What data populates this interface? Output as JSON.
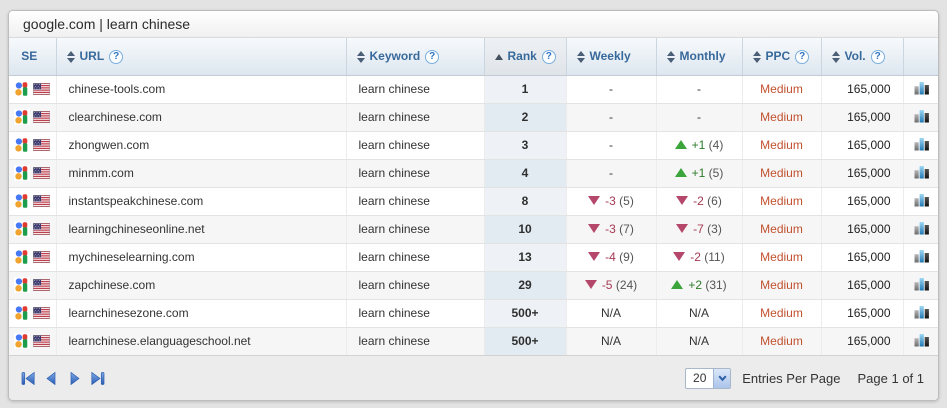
{
  "titlebar": {
    "title": "google.com | learn chinese"
  },
  "table": {
    "headers": [
      {
        "label": "SE"
      },
      {
        "label": "URL",
        "sortable": true,
        "help": true
      },
      {
        "label": "Keyword",
        "sortable": true,
        "help": true
      },
      {
        "label": "Rank",
        "sortable": true,
        "sorted": "asc",
        "help": true
      },
      {
        "label": "Weekly",
        "sortable": true
      },
      {
        "label": "Monthly",
        "sortable": true
      },
      {
        "label": "PPC",
        "sortable": true,
        "help": true
      },
      {
        "label": "Vol.",
        "sortable": true,
        "help": true
      },
      {
        "label": ""
      }
    ],
    "rows": [
      {
        "se": "google-us",
        "url": "chinese-tools.com",
        "keyword": "learn chinese",
        "rank": "1",
        "weekly": {
          "text": "-"
        },
        "monthly": {
          "text": "-"
        },
        "ppc": "Medium",
        "vol": "165,000"
      },
      {
        "se": "google-us",
        "url": "clearchinese.com",
        "keyword": "learn chinese",
        "rank": "2",
        "weekly": {
          "text": "-"
        },
        "monthly": {
          "text": "-"
        },
        "ppc": "Medium",
        "vol": "165,000"
      },
      {
        "se": "google-us",
        "url": "zhongwen.com",
        "keyword": "learn chinese",
        "rank": "3",
        "weekly": {
          "text": "-"
        },
        "monthly": {
          "dir": "up",
          "change": "+1",
          "prev": "(4)"
        },
        "ppc": "Medium",
        "vol": "165,000"
      },
      {
        "se": "google-us",
        "url": "minmm.com",
        "keyword": "learn chinese",
        "rank": "4",
        "weekly": {
          "text": "-"
        },
        "monthly": {
          "dir": "up",
          "change": "+1",
          "prev": "(5)"
        },
        "ppc": "Medium",
        "vol": "165,000"
      },
      {
        "se": "google-us",
        "url": "instantspeakchinese.com",
        "keyword": "learn chinese",
        "rank": "8",
        "weekly": {
          "dir": "down",
          "change": "-3",
          "prev": "(5)"
        },
        "monthly": {
          "dir": "down",
          "change": "-2",
          "prev": "(6)"
        },
        "ppc": "Medium",
        "vol": "165,000"
      },
      {
        "se": "google-us",
        "url": "learningchineseonline.net",
        "keyword": "learn chinese",
        "rank": "10",
        "weekly": {
          "dir": "down",
          "change": "-3",
          "prev": "(7)"
        },
        "monthly": {
          "dir": "down",
          "change": "-7",
          "prev": "(3)"
        },
        "ppc": "Medium",
        "vol": "165,000"
      },
      {
        "se": "google-us",
        "url": "mychineselearning.com",
        "keyword": "learn chinese",
        "rank": "13",
        "weekly": {
          "dir": "down",
          "change": "-4",
          "prev": "(9)"
        },
        "monthly": {
          "dir": "down",
          "change": "-2",
          "prev": "(11)"
        },
        "ppc": "Medium",
        "vol": "165,000"
      },
      {
        "se": "google-us",
        "url": "zapchinese.com",
        "keyword": "learn chinese",
        "rank": "29",
        "weekly": {
          "dir": "down",
          "change": "-5",
          "prev": "(24)"
        },
        "monthly": {
          "dir": "up",
          "change": "+2",
          "prev": "(31)"
        },
        "ppc": "Medium",
        "vol": "165,000"
      },
      {
        "se": "google-us",
        "url": "learnchinesezone.com",
        "keyword": "learn chinese",
        "rank": "500+",
        "weekly": {
          "text": "N/A"
        },
        "monthly": {
          "text": "N/A"
        },
        "ppc": "Medium",
        "vol": "165,000"
      },
      {
        "se": "google-us",
        "url": "learnchinese.elanguageschool.net",
        "keyword": "learn chinese",
        "rank": "500+",
        "weekly": {
          "text": "N/A"
        },
        "monthly": {
          "text": "N/A"
        },
        "ppc": "Medium",
        "vol": "165,000"
      }
    ]
  },
  "footer": {
    "entries_per_page": "20",
    "entries_label": "Entries Per Page",
    "page_label": "Page 1 of 1"
  },
  "icons": {
    "help_glyph": "?",
    "search_engine": "google-favicon + us-flag",
    "row_chart": "bar-chart",
    "pager": "first / prev / next / last triangles"
  },
  "colors": {
    "header_text": "#38699b",
    "up_green": "#3ba43b",
    "down_red": "#b5476a",
    "ppc_orange": "#c1512f",
    "rank_col_bg": "#e9f0f6",
    "footer_bg": "#ececec"
  }
}
